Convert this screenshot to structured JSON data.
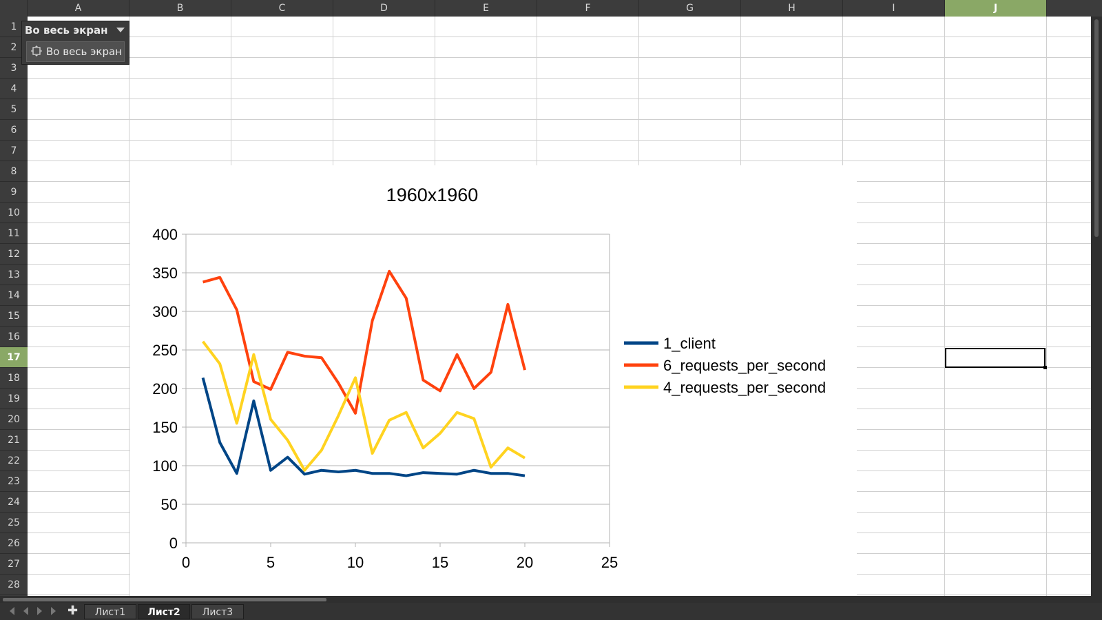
{
  "columns": [
    "A",
    "B",
    "C",
    "D",
    "E",
    "F",
    "G",
    "H",
    "I",
    "J"
  ],
  "selected_column": "J",
  "rows": [
    "1",
    "2",
    "3",
    "4",
    "5",
    "6",
    "7",
    "8",
    "9",
    "10",
    "11",
    "12",
    "13",
    "14",
    "15",
    "16",
    "17",
    "18",
    "19",
    "20",
    "21",
    "22",
    "23",
    "24",
    "25",
    "26",
    "27",
    "28"
  ],
  "selected_row": "17",
  "toolbar": {
    "title": "Во весь экран",
    "dropdown_icon": "chevron-down-icon",
    "button_label": "Во весь экран",
    "button_icon": "fullscreen-icon"
  },
  "sheet_tabs": [
    {
      "label": "Лист1",
      "active": false
    },
    {
      "label": "Лист2",
      "active": true
    },
    {
      "label": "Лист3",
      "active": false
    }
  ],
  "colors": {
    "1_client": "#004586",
    "6_requests_per_second": "#ff420e",
    "4_requests_per_second": "#ffd320"
  },
  "chart_data": {
    "type": "line",
    "title": "1960x1960",
    "xlim": [
      0,
      25
    ],
    "ylim": [
      0,
      400
    ],
    "x_ticks": [
      0,
      5,
      10,
      15,
      20,
      25
    ],
    "y_ticks": [
      0,
      50,
      100,
      150,
      200,
      250,
      300,
      350,
      400
    ],
    "grid": true,
    "legend_position": "right",
    "x": [
      1,
      2,
      3,
      4,
      5,
      6,
      7,
      8,
      9,
      10,
      11,
      12,
      13,
      14,
      15,
      16,
      17,
      18,
      19,
      20
    ],
    "series": [
      {
        "name": "1_client",
        "values": [
          214,
          130,
          90,
          184,
          94,
          111,
          89,
          94,
          92,
          94,
          90,
          90,
          87,
          91,
          90,
          89,
          94,
          90,
          90,
          87
        ]
      },
      {
        "name": "6_requests_per_second",
        "values": [
          338,
          344,
          302,
          209,
          199,
          247,
          242,
          240,
          207,
          168,
          288,
          352,
          317,
          211,
          197,
          244,
          200,
          221,
          309,
          224
        ]
      },
      {
        "name": "4_requests_per_second",
        "values": [
          261,
          232,
          155,
          244,
          160,
          133,
          94,
          120,
          165,
          214,
          116,
          159,
          169,
          123,
          142,
          169,
          161,
          98,
          123,
          110
        ]
      }
    ]
  }
}
